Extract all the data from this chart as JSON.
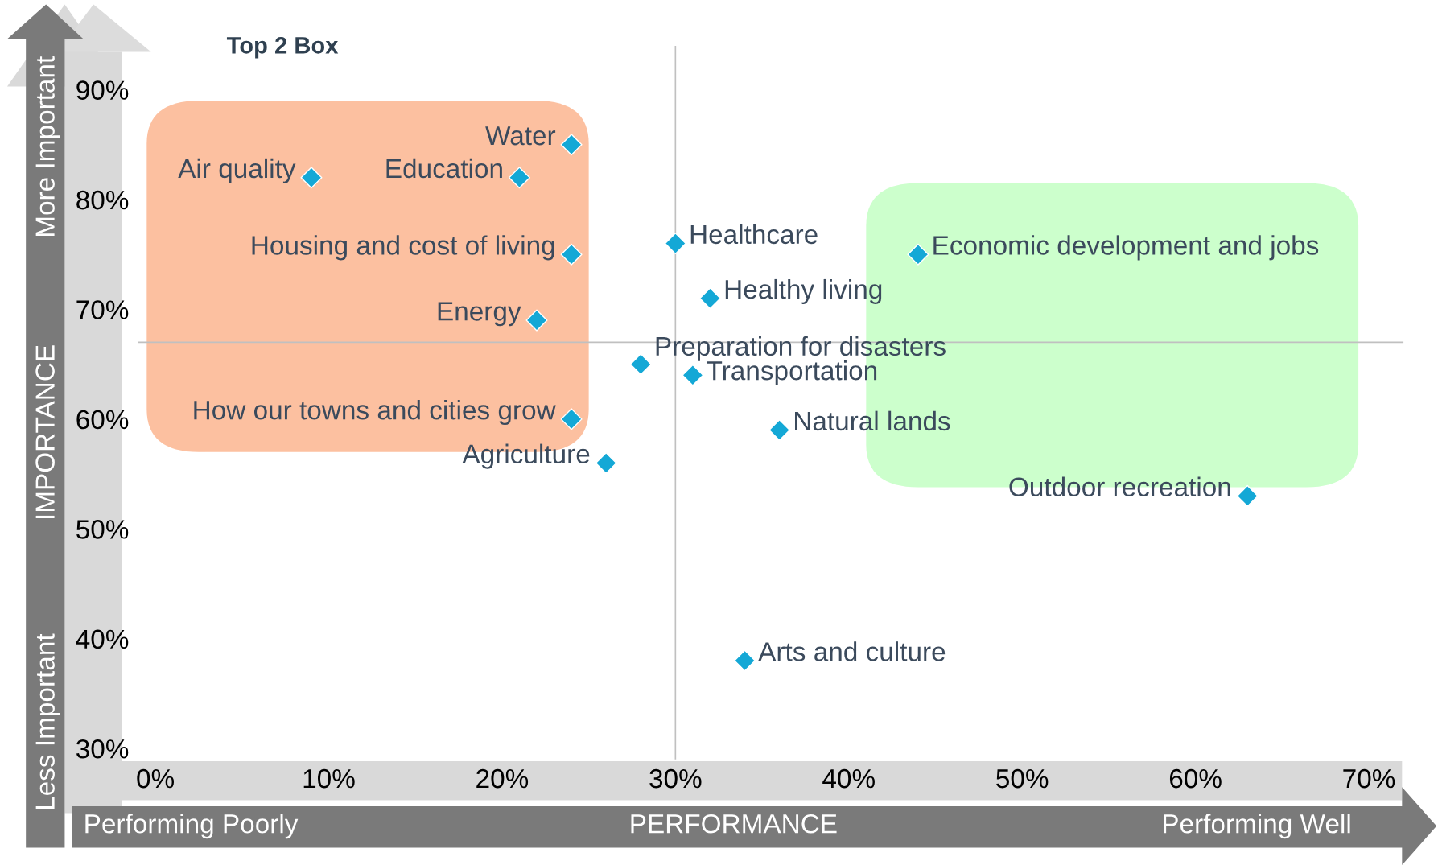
{
  "chart_data": {
    "type": "scatter",
    "title": "Top 2 Box",
    "xlabel": "PERFORMANCE",
    "ylabel": "IMPORTANCE",
    "x": [
      24,
      9,
      21,
      24,
      22,
      24,
      26,
      30,
      32,
      28,
      31,
      36,
      34,
      44,
      63
    ],
    "series": [
      {
        "color": "#14a8d6",
        "values": [
          85,
          82,
          82,
          75,
          69,
          60,
          56,
          76,
          71,
          65,
          64,
          59,
          38,
          75,
          53
        ]
      }
    ],
    "marker": "diamond",
    "annotations": [
      {
        "text": "Water",
        "x": 24,
        "y": 85
      },
      {
        "text": "Air quality",
        "x": 9,
        "y": 82
      },
      {
        "text": "Education",
        "x": 21,
        "y": 82
      },
      {
        "text": "Housing and cost of living",
        "x": 24,
        "y": 75
      },
      {
        "text": "Energy",
        "x": 22,
        "y": 69
      },
      {
        "text": "How our towns and cities grow",
        "x": 24,
        "y": 60
      },
      {
        "text": "Agriculture",
        "x": 26,
        "y": 56
      },
      {
        "text": "Healthcare",
        "x": 30,
        "y": 76
      },
      {
        "text": "Healthy living",
        "x": 32,
        "y": 71
      },
      {
        "text": "Preparation for disasters",
        "x": 28,
        "y": 65
      },
      {
        "text": "Transportation",
        "x": 31,
        "y": 64
      },
      {
        "text": "Natural lands",
        "x": 36,
        "y": 59
      },
      {
        "text": "Arts and culture",
        "x": 34,
        "y": 38
      },
      {
        "text": "Economic development and jobs",
        "x": 44,
        "y": 75
      },
      {
        "text": "Outdoor recreation",
        "x": 63,
        "y": 53
      },
      "More Important",
      "Less Important",
      "Performing Poorly",
      "Performing Well"
    ],
    "ref_lines": [
      {
        "axis": "x",
        "value": 30,
        "color": "#c0c0c0"
      },
      {
        "axis": "y",
        "value": 67,
        "color": "#c0c0c0"
      }
    ],
    "xlim": [
      -1,
      72
    ],
    "ylim": [
      29,
      94
    ],
    "xticks": [
      {
        "value": 0,
        "label": "0%"
      },
      {
        "value": 10,
        "label": "10%"
      },
      {
        "value": 20,
        "label": "20%"
      },
      {
        "value": 30,
        "label": "30%"
      },
      {
        "value": 40,
        "label": "40%"
      },
      {
        "value": 50,
        "label": "50%"
      },
      {
        "value": 60,
        "label": "60%"
      },
      {
        "value": 70,
        "label": "70%"
      }
    ],
    "yticks": [
      {
        "value": 30,
        "label": "30%"
      },
      {
        "value": 40,
        "label": "40%"
      },
      {
        "value": 50,
        "label": "50%"
      },
      {
        "value": 60,
        "label": "60%"
      },
      {
        "value": 70,
        "label": "70%"
      },
      {
        "value": 80,
        "label": "80%"
      },
      {
        "value": 90,
        "label": "90%"
      }
    ],
    "grid": false,
    "legend": false
  }
}
